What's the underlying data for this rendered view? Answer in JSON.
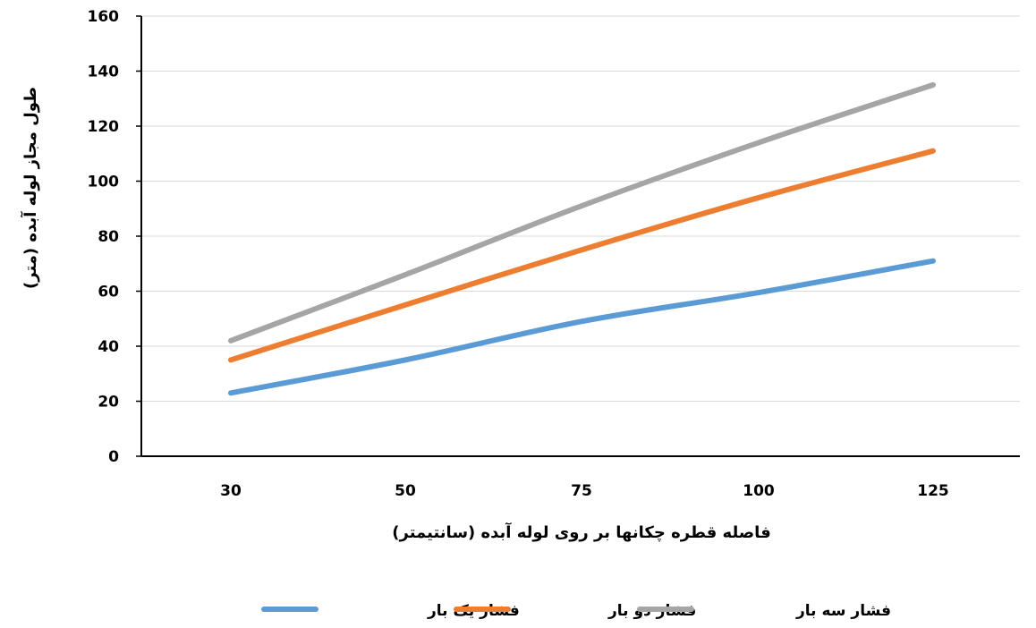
{
  "chart_data": {
    "type": "line",
    "categories": [
      "30",
      "50",
      "75",
      "100",
      "125"
    ],
    "series": [
      {
        "name": "فشار یک بار",
        "values": [
          23,
          35,
          49,
          59.5,
          71
        ],
        "color": "#5B9BD5"
      },
      {
        "name": "فشار دو بار",
        "values": [
          35,
          55,
          75,
          94,
          111
        ],
        "color": "#ED7D31"
      },
      {
        "name": "فشار سه بار",
        "values": [
          42,
          66,
          91,
          114,
          135
        ],
        "color": "#A5A5A5"
      }
    ],
    "xlabel": "فاصله قطره چکانها بر روی لوله آبده (سانتیمتر)",
    "ylabel": "طول مجاز لوله آبده (متر)",
    "ylim": [
      0,
      160
    ],
    "yticks": [
      0,
      20,
      40,
      60,
      80,
      100,
      120,
      140,
      160
    ],
    "grid": true,
    "legend_position": "bottom"
  }
}
